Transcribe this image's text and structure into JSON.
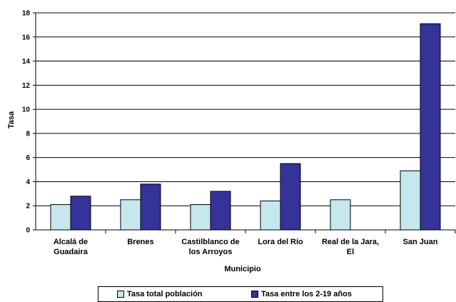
{
  "chart_data": {
    "type": "bar",
    "categories": [
      [
        "Alcalá de",
        "Guadaira"
      ],
      [
        "Brenes"
      ],
      [
        "Castilblanco de",
        "los Arroyos"
      ],
      [
        "Lora del Río"
      ],
      [
        "Real de la Jara,",
        "El"
      ],
      [
        "San Juan"
      ]
    ],
    "series": [
      {
        "name": "Tasa total población",
        "color": "#c6e7ee",
        "values": [
          2.1,
          2.5,
          2.1,
          2.4,
          2.5,
          4.9
        ]
      },
      {
        "name": "Tasa entre los 2-19 años",
        "color": "#333399",
        "values": [
          2.8,
          3.8,
          3.2,
          5.5,
          0,
          17.1
        ]
      }
    ],
    "xlabel": "Municipio",
    "ylabel": "Tasa",
    "ylim": [
      0,
      18
    ],
    "yticks": [
      "0",
      "2",
      "4",
      "6",
      "8",
      "10",
      "12",
      "14",
      "16",
      "18"
    ],
    "grid": true,
    "legend": "bottom"
  }
}
